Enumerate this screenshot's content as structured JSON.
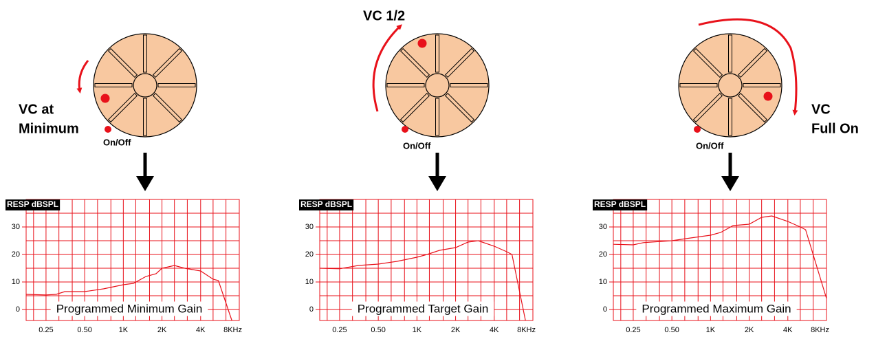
{
  "panels": [
    {
      "label_lines": [
        "VC at",
        "Minimum"
      ],
      "switch_label": "On/Off"
    },
    {
      "label_lines": [
        "VC 1/2"
      ],
      "switch_label": "On/Off"
    },
    {
      "label_lines": [
        "VC",
        "Full On"
      ],
      "switch_label": "On/Off"
    }
  ],
  "chart_data": [
    {
      "type": "line",
      "y_axis_label": "RESP dBSPL",
      "annotation": "Programmed Minimum Gain",
      "color": "#e8111a",
      "x": [
        0.175,
        0.25,
        0.3,
        0.35,
        0.5,
        0.7,
        1,
        1.2,
        1.5,
        1.8,
        2,
        2.5,
        3,
        4,
        5,
        5.5,
        7
      ],
      "values": [
        5.5,
        5.3,
        5.5,
        6.5,
        6.5,
        7.5,
        9,
        9.5,
        12,
        13,
        15,
        16,
        15,
        14,
        11,
        10.5,
        -4
      ],
      "xlim": [
        0.175,
        8
      ],
      "ylim": [
        -4,
        40
      ],
      "log_x": true,
      "grid": true,
      "xticks": [
        0.25,
        {
          "value": 0.5,
          "label": "0.50"
        },
        {
          "value": 1,
          "label": "1K"
        },
        {
          "value": 2,
          "label": "2K"
        },
        {
          "value": 4,
          "label": "4K"
        },
        {
          "value": 8,
          "label": "8KHz"
        }
      ],
      "yticks": [
        0,
        10,
        20,
        30
      ],
      "minor_xticks": [
        0.2,
        0.315,
        0.4,
        0.63,
        0.8,
        1.25,
        1.6,
        2.5,
        3.15,
        5,
        6.3
      ],
      "minor_yticks": [
        5,
        15,
        25,
        35
      ]
    },
    {
      "type": "line",
      "y_axis_label": "RESP dBSPL",
      "annotation": "Programmed Target Gain",
      "color": "#e8111a",
      "x": [
        0.175,
        0.25,
        0.35,
        0.5,
        0.7,
        1,
        1.2,
        1.5,
        2,
        2.5,
        3,
        4,
        5,
        5.5,
        7
      ],
      "values": [
        15,
        14.8,
        16,
        16.5,
        17.5,
        19,
        20,
        21.5,
        22.5,
        24.5,
        25,
        23,
        21,
        20,
        -4
      ],
      "xlim": [
        0.175,
        8
      ],
      "ylim": [
        -4,
        40
      ],
      "log_x": true,
      "grid": true,
      "xticks": [
        0.25,
        {
          "value": 0.5,
          "label": "0.50"
        },
        {
          "value": 1,
          "label": "1K"
        },
        {
          "value": 2,
          "label": "2K"
        },
        {
          "value": 4,
          "label": "4K"
        },
        {
          "value": 8,
          "label": "8KHz"
        }
      ],
      "yticks": [
        0,
        10,
        20,
        30
      ],
      "minor_xticks": [
        0.2,
        0.315,
        0.4,
        0.63,
        0.8,
        1.25,
        1.6,
        2.5,
        3.15,
        5,
        6.3
      ],
      "minor_yticks": [
        5,
        15,
        25,
        35
      ]
    },
    {
      "type": "line",
      "y_axis_label": "RESP dBSPL",
      "annotation": "Programmed Maximum Gain",
      "color": "#e8111a",
      "x": [
        0.175,
        0.25,
        0.3,
        0.5,
        0.7,
        1,
        1.2,
        1.5,
        2,
        2.5,
        3,
        4,
        5,
        5.5,
        8
      ],
      "values": [
        23.7,
        23.5,
        24.3,
        25,
        26,
        27,
        28,
        30.5,
        31,
        33.5,
        34,
        32,
        30,
        29,
        4
      ],
      "xlim": [
        0.175,
        8
      ],
      "ylim": [
        -4,
        40
      ],
      "log_x": true,
      "grid": true,
      "xticks": [
        0.25,
        {
          "value": 0.5,
          "label": "0.50"
        },
        {
          "value": 1,
          "label": "1K"
        },
        {
          "value": 2,
          "label": "2K"
        },
        {
          "value": 4,
          "label": "4K"
        },
        {
          "value": 8,
          "label": "8KHz"
        }
      ],
      "yticks": [
        0,
        10,
        20,
        30
      ],
      "minor_xticks": [
        0.2,
        0.315,
        0.4,
        0.63,
        0.8,
        1.25,
        1.6,
        2.5,
        3.15,
        5,
        6.3
      ],
      "minor_yticks": [
        5,
        15,
        25,
        35
      ]
    }
  ]
}
